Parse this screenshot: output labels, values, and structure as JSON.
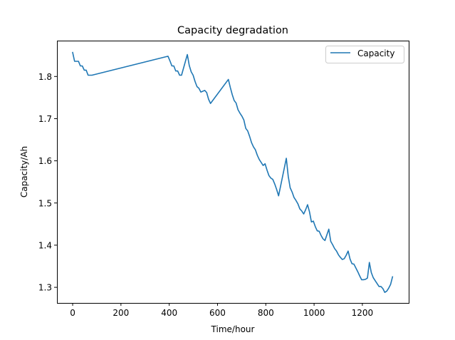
{
  "chart_data": {
    "type": "line",
    "title": "Capacity degradation",
    "xlabel": "Time/hour",
    "ylabel": "Capacity/Ah",
    "xlim": [
      -65,
      1392
    ],
    "ylim": [
      1.263,
      1.885
    ],
    "xticks": [
      0,
      200,
      400,
      600,
      800,
      1000,
      1200
    ],
    "xtick_labels": [
      "0",
      "200",
      "400",
      "600",
      "800",
      "1000",
      "1200"
    ],
    "yticks": [
      1.3,
      1.4,
      1.5,
      1.6,
      1.7,
      1.8
    ],
    "ytick_labels": [
      "1.3",
      "1.4",
      "1.5",
      "1.6",
      "1.7",
      "1.8"
    ],
    "grid": false,
    "legend_position": "top-right",
    "series": [
      {
        "name": "Capacity",
        "color": "#1f77b4",
        "x": [
          0,
          8,
          16,
          24,
          32,
          40,
          48,
          56,
          64,
          72,
          80,
          395,
          403,
          411,
          419,
          427,
          435,
          443,
          451,
          475,
          483,
          491,
          499,
          507,
          515,
          523,
          531,
          539,
          547,
          555,
          563,
          571,
          645,
          653,
          661,
          669,
          677,
          685,
          693,
          701,
          709,
          717,
          725,
          733,
          741,
          749,
          757,
          765,
          773,
          781,
          789,
          797,
          805,
          813,
          821,
          829,
          837,
          845,
          853,
          885,
          893,
          901,
          909,
          917,
          925,
          933,
          941,
          949,
          957,
          965,
          973,
          981,
          989,
          997,
          1005,
          1013,
          1021,
          1029,
          1037,
          1045,
          1061,
          1069,
          1077,
          1085,
          1093,
          1101,
          1109,
          1117,
          1125,
          1133,
          1141,
          1149,
          1157,
          1165,
          1173,
          1181,
          1189,
          1197,
          1205,
          1213,
          1221,
          1229,
          1237,
          1245,
          1253,
          1261,
          1269,
          1277,
          1285,
          1293,
          1301,
          1309,
          1317,
          1325
        ],
        "values": [
          1.857,
          1.836,
          1.836,
          1.836,
          1.825,
          1.825,
          1.815,
          1.815,
          1.803,
          1.803,
          1.803,
          1.848,
          1.837,
          1.825,
          1.825,
          1.813,
          1.813,
          1.803,
          1.803,
          1.852,
          1.826,
          1.811,
          1.803,
          1.788,
          1.776,
          1.772,
          1.763,
          1.765,
          1.767,
          1.762,
          1.746,
          1.736,
          1.793,
          1.774,
          1.757,
          1.743,
          1.737,
          1.721,
          1.713,
          1.706,
          1.697,
          1.677,
          1.671,
          1.658,
          1.643,
          1.633,
          1.626,
          1.613,
          1.603,
          1.596,
          1.589,
          1.593,
          1.578,
          1.565,
          1.559,
          1.556,
          1.545,
          1.532,
          1.517,
          1.606,
          1.563,
          1.536,
          1.526,
          1.513,
          1.506,
          1.498,
          1.486,
          1.481,
          1.474,
          1.484,
          1.496,
          1.479,
          1.455,
          1.457,
          1.444,
          1.434,
          1.433,
          1.423,
          1.415,
          1.411,
          1.438,
          1.409,
          1.401,
          1.392,
          1.386,
          1.377,
          1.371,
          1.366,
          1.368,
          1.376,
          1.386,
          1.367,
          1.356,
          1.355,
          1.346,
          1.337,
          1.327,
          1.318,
          1.318,
          1.319,
          1.322,
          1.359,
          1.335,
          1.323,
          1.316,
          1.309,
          1.302,
          1.302,
          1.297,
          1.288,
          1.291,
          1.298,
          1.307,
          1.325
        ]
      }
    ]
  }
}
